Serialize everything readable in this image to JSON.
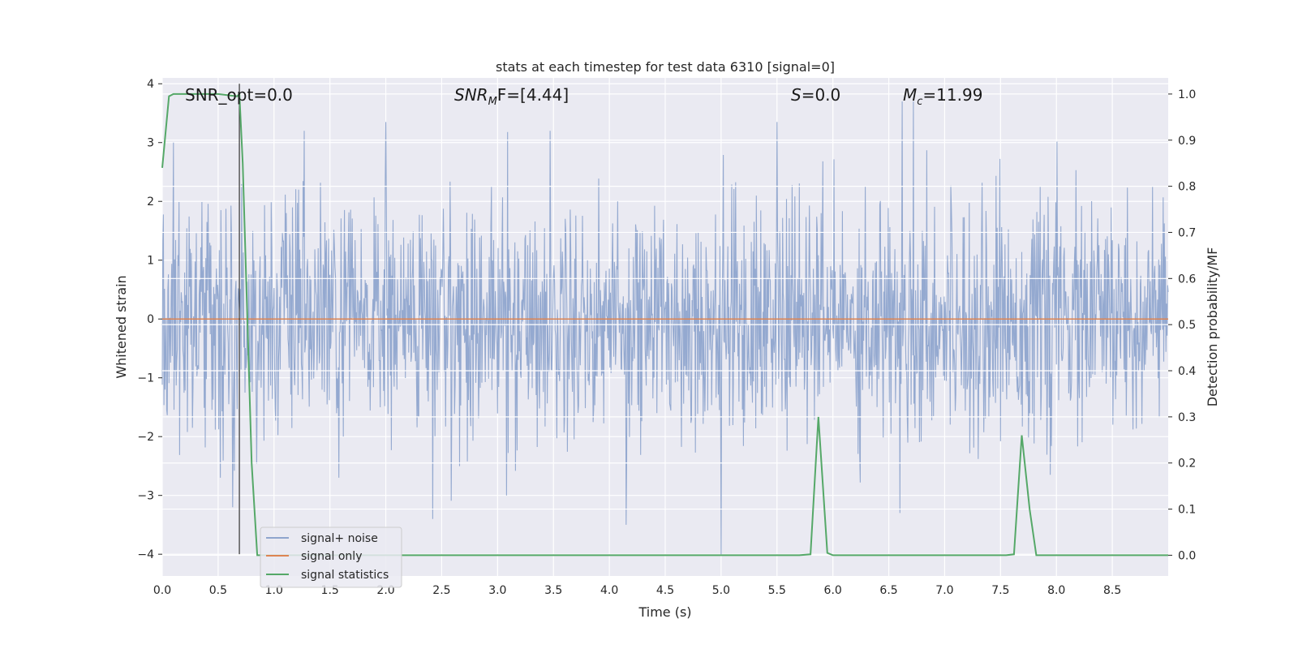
{
  "chart_data": {
    "type": "line",
    "title": "stats at each timestep for test data 6310 [signal=0]",
    "xlabel": "Time (s)",
    "ylabel_left": "Whitened strain",
    "ylabel_right": "Detection probability/MF",
    "xlim": [
      0.0,
      9.0
    ],
    "ylim_left": [
      -4.37,
      4.1
    ],
    "ylim_right": [
      -0.045,
      1.035
    ],
    "x_ticks": [
      "0.0",
      "0.5",
      "1.0",
      "1.5",
      "2.0",
      "2.5",
      "3.0",
      "3.5",
      "4.0",
      "4.5",
      "5.0",
      "5.5",
      "6.0",
      "6.5",
      "7.0",
      "7.5",
      "8.0",
      "8.5"
    ],
    "y_left_ticks": [
      "4",
      "3",
      "2",
      "1",
      "0",
      "−1",
      "−2",
      "−3",
      "−4"
    ],
    "y_right_ticks": [
      "1.0",
      "0.9",
      "0.8",
      "0.7",
      "0.6",
      "0.5",
      "0.4",
      "0.3",
      "0.2",
      "0.1",
      "0.0"
    ],
    "grid": true,
    "legend_position": "lower-left",
    "annotations": {
      "snr_opt": "SNR_opt=0.0",
      "snr_mf_main": "SNR",
      "snr_mf_sub": "M",
      "snr_mf_tail": "F=[4.44]",
      "s_main": "S",
      "s_tail": "=0.0",
      "mc_main": "M",
      "mc_sub": "c",
      "mc_tail": "=11.99"
    },
    "vline_x": 0.69,
    "series": [
      {
        "name": "signal+ noise",
        "color": "#8fa5cd",
        "description_values": "whitened noise, roughly Gaussian, band ±2 with spikes to about ±3.7",
        "spikes": [
          {
            "x": 2.0,
            "y": 3.35
          },
          {
            "x": 2.42,
            "y": -3.4
          },
          {
            "x": 4.15,
            "y": -3.5
          },
          {
            "x": 5.0,
            "y": -4.0
          },
          {
            "x": 5.5,
            "y": 3.35
          },
          {
            "x": 6.62,
            "y": 3.7
          },
          {
            "x": 6.72,
            "y": 3.7
          },
          {
            "x": 6.6,
            "y": -3.3
          },
          {
            "x": 0.1,
            "y": 3.0
          },
          {
            "x": 0.52,
            "y": -2.7
          },
          {
            "x": 1.58,
            "y": -2.7
          },
          {
            "x": 3.08,
            "y": -3.0
          }
        ]
      },
      {
        "name": "signal only",
        "color": "#dd8452",
        "x": [
          0.0,
          9.0
        ],
        "y": [
          0.0,
          0.0
        ]
      },
      {
        "name": "signal statistics",
        "color": "#55a868",
        "axis": "right",
        "x": [
          0.0,
          0.06,
          0.1,
          0.2,
          0.3,
          0.5,
          0.67,
          0.69,
          0.72,
          0.8,
          0.85,
          5.7,
          5.8,
          5.87,
          5.95,
          6.0,
          6.5,
          7.3,
          7.55,
          7.62,
          7.69,
          7.76,
          7.82,
          8.2,
          9.0
        ],
        "y": [
          0.84,
          0.995,
          1.0,
          1.0,
          1.0,
          1.0,
          0.995,
          1.0,
          0.85,
          0.2,
          0.0,
          0.0,
          0.002,
          0.3,
          0.005,
          0.0,
          0.0,
          0.0,
          0.0,
          0.002,
          0.26,
          0.1,
          0.0,
          0.0,
          0.0
        ]
      }
    ]
  },
  "legend": [
    {
      "label": "signal+ noise",
      "color": "#8fa5cd"
    },
    {
      "label": "signal only",
      "color": "#dd8452"
    },
    {
      "label": "signal statistics",
      "color": "#55a868"
    }
  ]
}
